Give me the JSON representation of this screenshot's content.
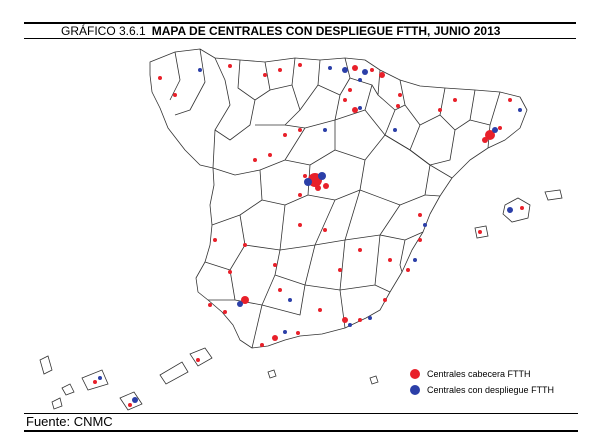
{
  "title": {
    "number": "GRÁFICO 3.6.1",
    "text": "MAPA DE CENTRALES CON DESPLIEGUE FTTH, JUNIO 2013"
  },
  "legend": {
    "items": [
      {
        "label": "Centrales cabecera FTTH",
        "color": "#e8202a"
      },
      {
        "label": "Centrales con despliegue FTTH",
        "color": "#2b3fa8"
      }
    ]
  },
  "source": "Fuente: CNMC"
}
